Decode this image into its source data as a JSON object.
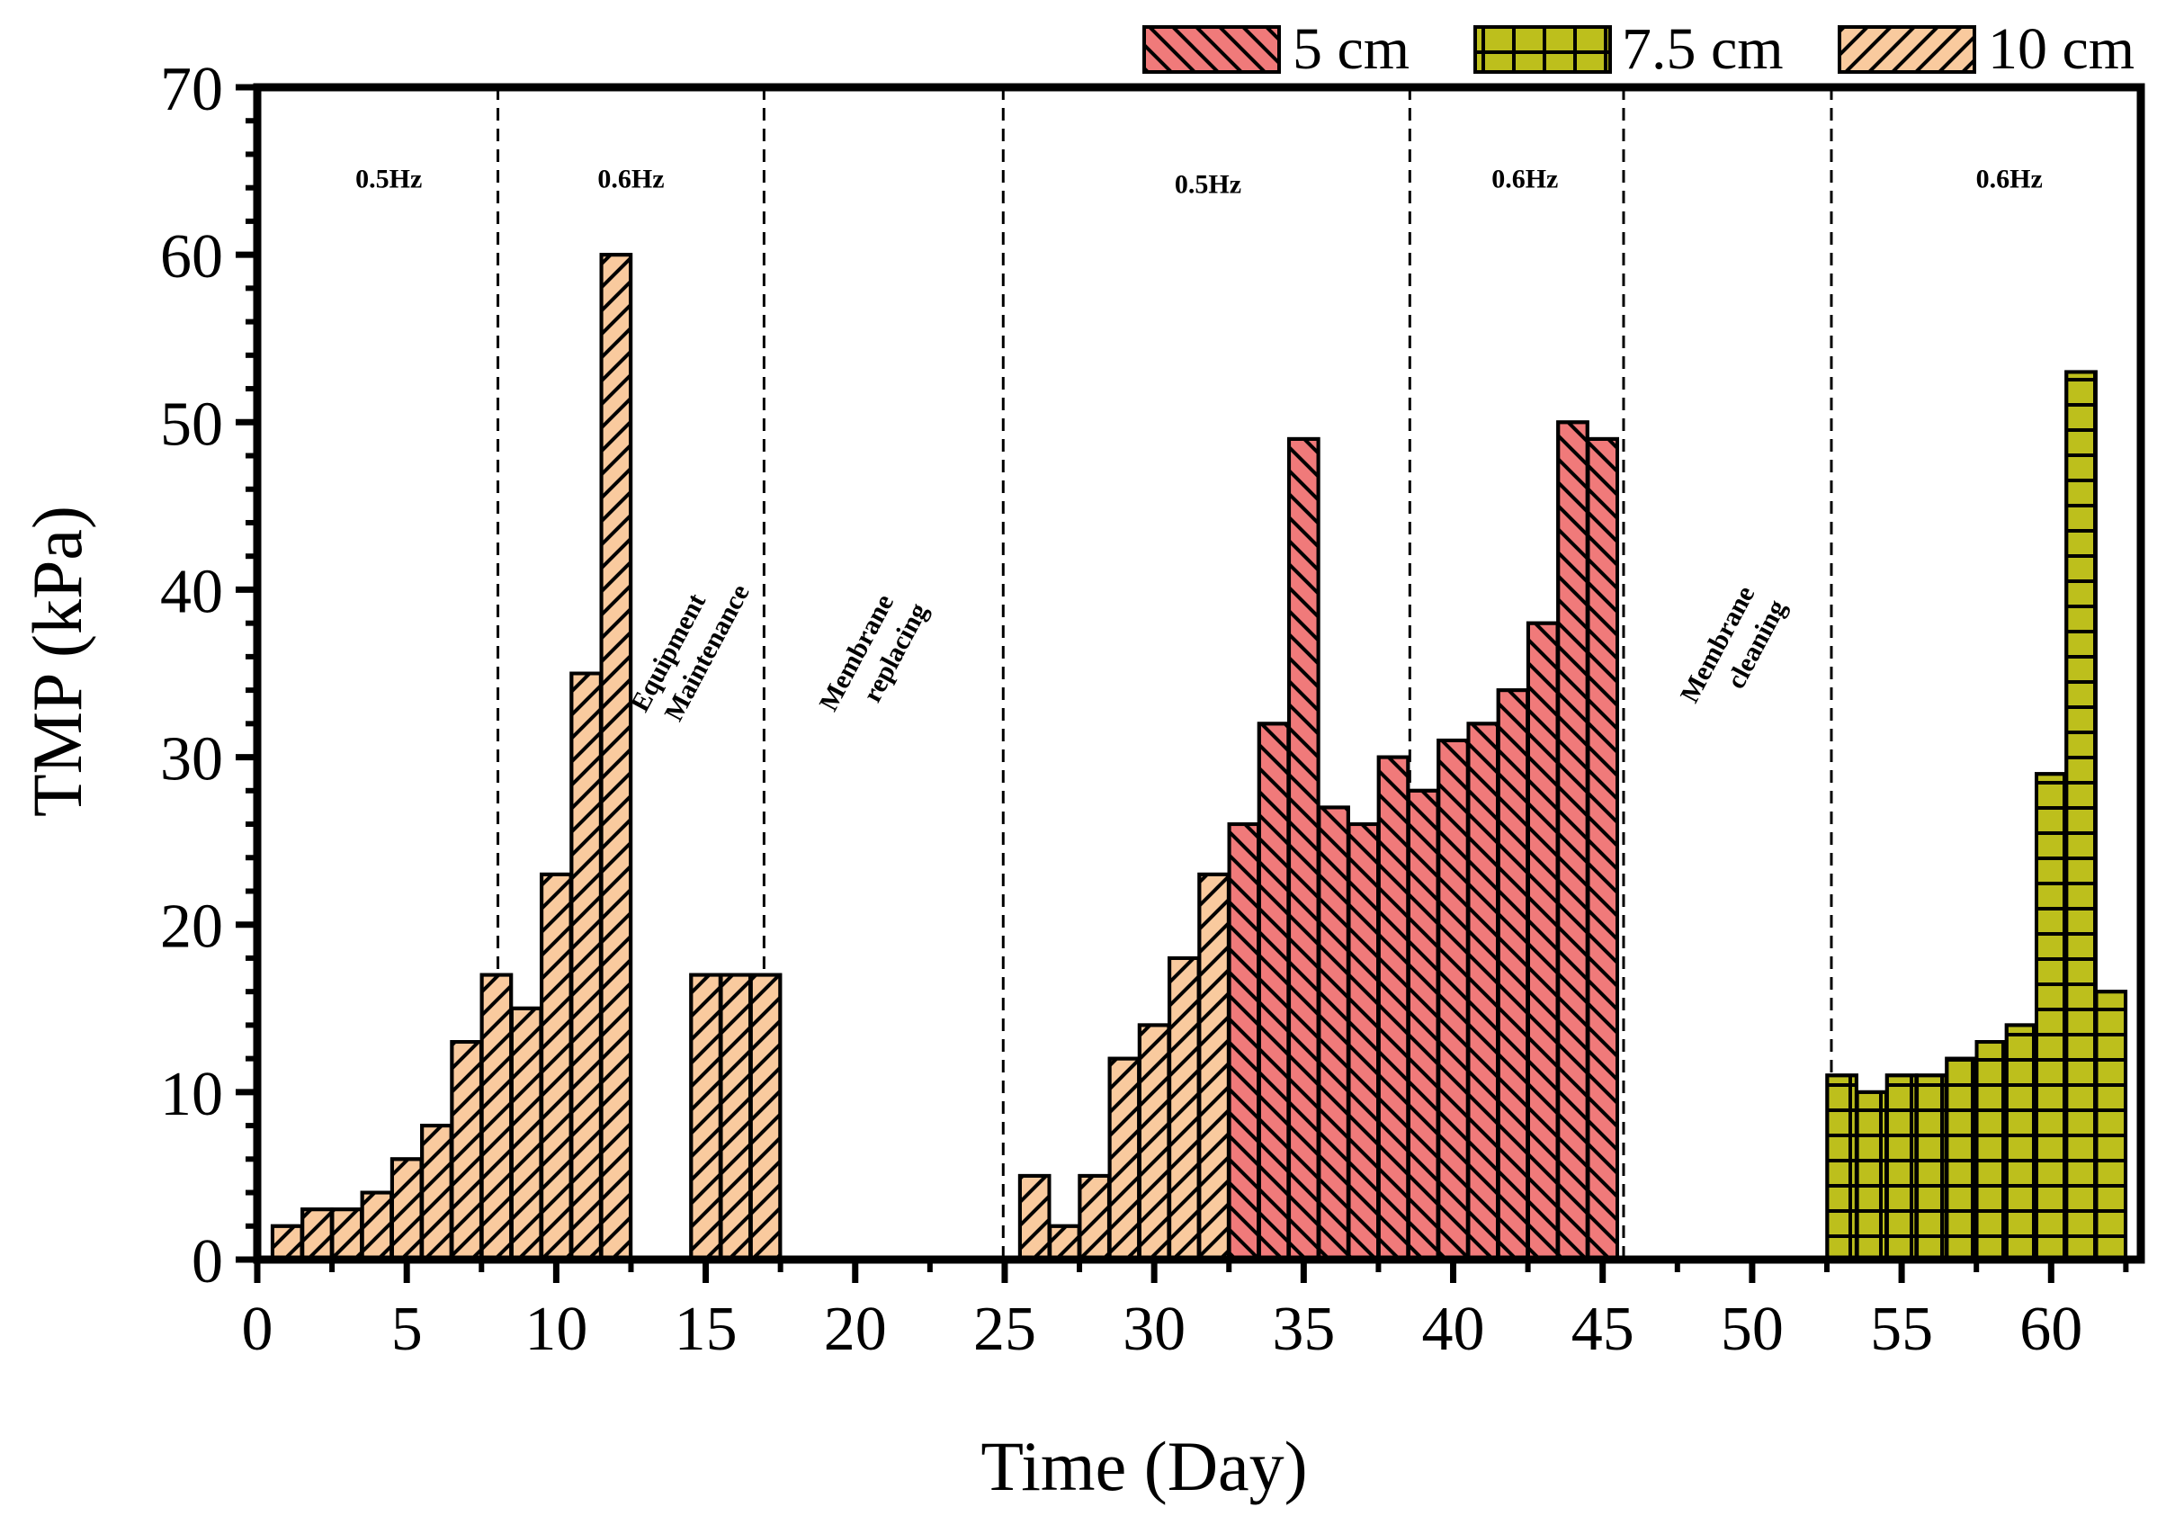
{
  "chart_data": {
    "type": "bar",
    "xlabel": "Time (Day)",
    "ylabel": "TMP (kPa)",
    "xlim": [
      0,
      63
    ],
    "ylim": [
      0,
      70
    ],
    "xticks": [
      0,
      5,
      10,
      15,
      20,
      25,
      30,
      35,
      40,
      45,
      50,
      55,
      60
    ],
    "yticks": [
      0,
      10,
      20,
      30,
      40,
      50,
      60,
      70
    ],
    "legend_position": "top-right, outside plot",
    "series": [
      {
        "name": "5 cm",
        "color": "#F07A7A",
        "pattern": "hatch-backslash",
        "points": [
          {
            "x": 33,
            "y": 26
          },
          {
            "x": 34,
            "y": 32
          },
          {
            "x": 35,
            "y": 49
          },
          {
            "x": 36,
            "y": 27
          },
          {
            "x": 37,
            "y": 26
          },
          {
            "x": 38,
            "y": 30
          },
          {
            "x": 39,
            "y": 28
          },
          {
            "x": 40,
            "y": 31
          },
          {
            "x": 41,
            "y": 32
          },
          {
            "x": 42,
            "y": 34
          },
          {
            "x": 43,
            "y": 38
          },
          {
            "x": 44,
            "y": 50
          },
          {
            "x": 45,
            "y": 49
          }
        ]
      },
      {
        "name": "7.5 cm",
        "color": "#BDBF1C",
        "pattern": "grid",
        "points": [
          {
            "x": 53,
            "y": 11
          },
          {
            "x": 54,
            "y": 10
          },
          {
            "x": 55,
            "y": 11
          },
          {
            "x": 56,
            "y": 11
          },
          {
            "x": 57,
            "y": 12
          },
          {
            "x": 58,
            "y": 13
          },
          {
            "x": 59,
            "y": 14
          },
          {
            "x": 60,
            "y": 29
          },
          {
            "x": 61,
            "y": 53
          },
          {
            "x": 62,
            "y": 16
          }
        ]
      },
      {
        "name": "10 cm",
        "color": "#F9CA9E",
        "pattern": "hatch-slash",
        "points": [
          {
            "x": 1,
            "y": 2
          },
          {
            "x": 2,
            "y": 3
          },
          {
            "x": 3,
            "y": 3
          },
          {
            "x": 4,
            "y": 4
          },
          {
            "x": 5,
            "y": 6
          },
          {
            "x": 6,
            "y": 8
          },
          {
            "x": 7,
            "y": 13
          },
          {
            "x": 8,
            "y": 17
          },
          {
            "x": 9,
            "y": 15
          },
          {
            "x": 10,
            "y": 23
          },
          {
            "x": 11,
            "y": 35
          },
          {
            "x": 12,
            "y": 60
          },
          {
            "x": 15,
            "y": 17
          },
          {
            "x": 16,
            "y": 17
          },
          {
            "x": 17,
            "y": 17
          },
          {
            "x": 26,
            "y": 5
          },
          {
            "x": 27,
            "y": 2
          },
          {
            "x": 28,
            "y": 5
          },
          {
            "x": 29,
            "y": 12
          },
          {
            "x": 30,
            "y": 14
          },
          {
            "x": 31,
            "y": 18
          },
          {
            "x": 32,
            "y": 23
          }
        ]
      }
    ],
    "dividers_x": [
      8.05,
      16.95,
      24.95,
      38.55,
      45.7,
      52.65
    ],
    "annotations": [
      {
        "text": "0.5Hz",
        "x": 4.4,
        "y": 64,
        "rotate": 0
      },
      {
        "text": "0.6Hz",
        "x": 12.5,
        "y": 64,
        "rotate": 0
      },
      {
        "text": "Equipment",
        "x": 14.0,
        "y": 36,
        "rotate": -62
      },
      {
        "text": "Maintenance",
        "x": 15.3,
        "y": 36,
        "rotate": -62
      },
      {
        "text": "Membrane",
        "x": 20.3,
        "y": 36,
        "rotate": -62
      },
      {
        "text": "replacing",
        "x": 21.6,
        "y": 36,
        "rotate": -62
      },
      {
        "text": "0.5Hz",
        "x": 31.8,
        "y": 63.7,
        "rotate": 0
      },
      {
        "text": "0.6Hz",
        "x": 42.4,
        "y": 64,
        "rotate": 0
      },
      {
        "text": "Membrane",
        "x": 49.1,
        "y": 36.5,
        "rotate": -62
      },
      {
        "text": "cleaning",
        "x": 50.4,
        "y": 36.5,
        "rotate": -62
      },
      {
        "text": "0.6Hz",
        "x": 58.6,
        "y": 64,
        "rotate": 0
      }
    ]
  }
}
